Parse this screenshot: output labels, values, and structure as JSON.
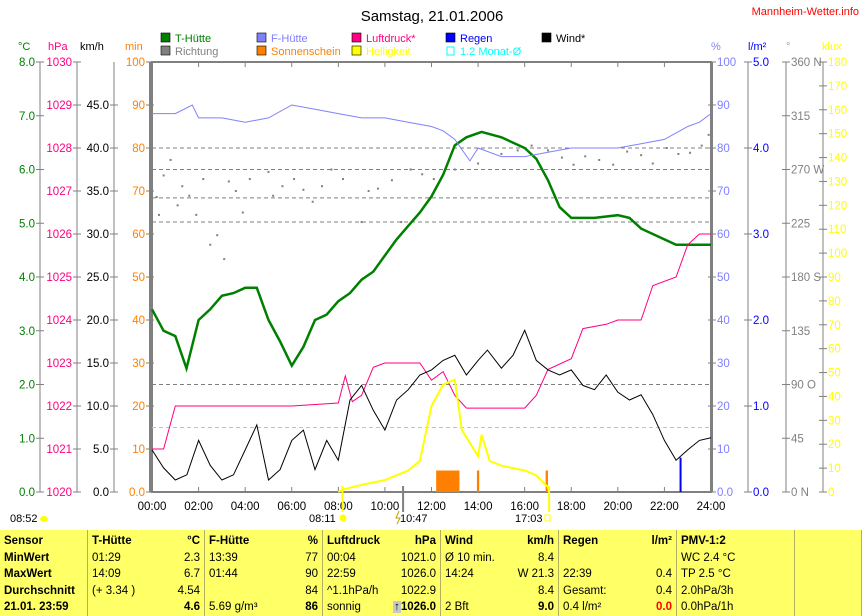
{
  "title": "Samstag, 21.01.2006",
  "site": "Mannheim-Wetter.info",
  "colors": {
    "temp": "#008000",
    "pressure": "#ff0080",
    "humidity": "#8080ff",
    "wind": "#000000",
    "direction": "#808080",
    "sunshine": "#ff8000",
    "brightness": "#ffff00",
    "rain": "#0000ff",
    "monthavg": "#00ffff",
    "table_bg": "#ffff66"
  },
  "legend": [
    {
      "label": "T-Hütte",
      "color": "#008000"
    },
    {
      "label": "F-Hütte",
      "color": "#8080ff"
    },
    {
      "label": "Luftdruck*",
      "color": "#ff0080"
    },
    {
      "label": "Regen",
      "color": "#0000ff"
    },
    {
      "label": "Wind*",
      "color": "#000000"
    },
    {
      "label": "Richtung",
      "color": "#808080"
    },
    {
      "label": "Sonnenschein",
      "color": "#ff8000"
    },
    {
      "label": "Helligkeit",
      "color": "#ffff00"
    },
    {
      "label": "1.2 Monat-Ø",
      "color": "#00ffff"
    }
  ],
  "units": {
    "temp": "°C",
    "pressure": "hPa",
    "wind": "km/h",
    "sun": "min",
    "humidity": "%",
    "rain": "l/m²",
    "dir": "°",
    "klux": "klux"
  },
  "below_axis": {
    "sunrise_info": "08:52",
    "sunrise": "08:11",
    "event": "10:47",
    "sunset": "17:03"
  },
  "chart_data": {
    "type": "line",
    "title": "Samstag, 21.01.2006",
    "x_range_hours": [
      0,
      24
    ],
    "x_ticks": [
      "00:00",
      "02:00",
      "04:00",
      "06:00",
      "08:00",
      "10:00",
      "12:00",
      "14:00",
      "16:00",
      "18:00",
      "20:00",
      "22:00",
      "24:00"
    ],
    "axes": {
      "temp": {
        "range": [
          0,
          8
        ],
        "ticks": [
          "0.0",
          "1.0",
          "2.0",
          "3.0",
          "4.0",
          "5.0",
          "6.0",
          "7.0",
          "8.0"
        ]
      },
      "pressure": {
        "range": [
          1020,
          1030
        ],
        "ticks": [
          "1020",
          "1021",
          "1022",
          "1023",
          "1024",
          "1025",
          "1026",
          "1027",
          "1028",
          "1029",
          "1030"
        ]
      },
      "wind": {
        "range": [
          0,
          50
        ],
        "ticks": [
          "0.0",
          "5.0",
          "10.0",
          "15.0",
          "20.0",
          "25.0",
          "30.0",
          "35.0",
          "40.0",
          "45.0"
        ]
      },
      "sun": {
        "range": [
          0,
          100
        ],
        "ticks": [
          "0.0",
          "10",
          "20",
          "30",
          "40",
          "50",
          "60",
          "70",
          "80",
          "90",
          "100"
        ]
      },
      "humidity": {
        "range": [
          0,
          100
        ],
        "ticks": [
          "0.0",
          "10",
          "20",
          "30",
          "40",
          "50",
          "60",
          "70",
          "80",
          "90",
          "100"
        ]
      },
      "rain": {
        "range": [
          0,
          5
        ],
        "ticks": [
          "0.0",
          "1.0",
          "2.0",
          "3.0",
          "4.0",
          "5.0"
        ]
      },
      "dir": {
        "range": [
          0,
          360
        ],
        "ticks": [
          "0 N",
          "45",
          "90 O",
          "135",
          "180 S",
          "225",
          "270 W",
          "315",
          "360 N"
        ]
      },
      "klux": {
        "range": [
          0,
          180
        ],
        "ticks": [
          "0",
          "10",
          "20",
          "30",
          "40",
          "50",
          "60",
          "70",
          "80",
          "90",
          "100",
          "110",
          "120",
          "130",
          "140",
          "150",
          "160",
          "170",
          "180"
        ]
      }
    },
    "series": [
      {
        "name": "T-Hütte",
        "axis": "temp",
        "color": "#008000",
        "x": [
          0,
          0.5,
          1.0,
          1.48,
          2,
          2.5,
          3,
          3.5,
          4,
          4.5,
          5,
          5.5,
          6,
          6.5,
          7,
          7.5,
          8,
          8.5,
          9,
          9.5,
          10,
          10.5,
          11,
          11.5,
          12,
          12.5,
          13,
          13.5,
          14.15,
          15,
          16,
          16.5,
          17,
          17.5,
          18,
          19,
          20,
          20.5,
          21,
          22,
          22.5,
          23,
          24
        ],
        "y": [
          3.4,
          3.0,
          2.9,
          2.3,
          3.2,
          3.4,
          3.65,
          3.7,
          3.8,
          3.8,
          3.2,
          2.8,
          2.35,
          2.7,
          3.2,
          3.3,
          3.55,
          3.7,
          3.95,
          4.1,
          4.4,
          4.7,
          4.95,
          5.2,
          5.5,
          5.9,
          6.45,
          6.6,
          6.7,
          6.6,
          6.4,
          6.2,
          5.8,
          5.3,
          5.1,
          5.1,
          5.15,
          5.1,
          4.9,
          4.7,
          4.6,
          4.6,
          4.6
        ]
      },
      {
        "name": "F-Hütte",
        "axis": "humidity",
        "color": "#8080ff",
        "x": [
          0,
          1,
          1.73,
          2,
          3,
          4,
          5,
          6,
          7,
          8,
          9,
          10,
          11,
          12,
          12.5,
          13,
          13.65,
          14,
          15,
          16,
          17,
          18,
          19,
          20,
          21,
          22,
          23,
          23.5,
          24
        ],
        "y": [
          88,
          88,
          90,
          87,
          87,
          86,
          87,
          90,
          89,
          88,
          87,
          87,
          86,
          85,
          84,
          82,
          77,
          80,
          78,
          78,
          79,
          80,
          80,
          80,
          81,
          82,
          85,
          86,
          88
        ]
      },
      {
        "name": "Luftdruck*",
        "axis": "pressure",
        "color": "#ff0080",
        "x": [
          0,
          0.5,
          1,
          2,
          4,
          6,
          8,
          8.3,
          8.6,
          9,
          9.5,
          10,
          10.5,
          11.5,
          12,
          12.5,
          13,
          13.5,
          15,
          16,
          16.5,
          17,
          18,
          18.5,
          19.5,
          20,
          21,
          21.5,
          22.5,
          23,
          23.5,
          24
        ],
        "y": [
          1021.0,
          1021.0,
          1022.0,
          1022.0,
          1022.0,
          1022.0,
          1022.07,
          1022.7,
          1022.1,
          1022.25,
          1022.9,
          1023.0,
          1023.0,
          1023.0,
          1022.6,
          1022.8,
          1022.25,
          1021.95,
          1021.95,
          1021.95,
          1022.25,
          1022.85,
          1023.1,
          1023.8,
          1023.9,
          1024.0,
          1024.0,
          1024.8,
          1025.0,
          1025.75,
          1026.0,
          1026.0
        ]
      },
      {
        "name": "Wind*",
        "axis": "wind",
        "color": "#000000",
        "x": [
          0,
          0.5,
          1,
          1.5,
          2,
          2.5,
          3,
          3.5,
          4,
          4.5,
          5,
          5.5,
          6,
          6.5,
          7,
          7.5,
          8,
          8.5,
          9,
          9.5,
          10,
          10.5,
          11,
          11.5,
          12,
          12.5,
          13,
          13.5,
          14,
          14.4,
          15,
          15.5,
          16,
          16.5,
          17,
          17.5,
          18,
          18.5,
          19,
          19.5,
          20,
          20.5,
          21,
          21.5,
          22,
          22.5,
          23,
          23.5,
          24
        ],
        "y": [
          4.9,
          2.8,
          1.4,
          2.0,
          6.0,
          3.1,
          1.4,
          2.0,
          4.9,
          7.8,
          1.4,
          2.6,
          6.0,
          7.2,
          2.6,
          6.0,
          3.7,
          10.7,
          12.4,
          9.5,
          7.2,
          10.7,
          11.9,
          13.6,
          14.2,
          15.3,
          15.9,
          13.6,
          15.3,
          16.5,
          14.4,
          15.9,
          18.8,
          15.3,
          14.2,
          13.6,
          14.2,
          12.4,
          11.9,
          13.6,
          11.6,
          10.7,
          11.3,
          9.0,
          6.0,
          3.7,
          4.9,
          6.0,
          6.3
        ]
      },
      {
        "name": "Helligkeit",
        "axis": "klux",
        "color": "#ffff00",
        "x": [
          8.0,
          8.2,
          9,
          10,
          11,
          11.5,
          12,
          12.5,
          13,
          13.3,
          14,
          14.15,
          14.5,
          15,
          16,
          16.5,
          17,
          17.05
        ],
        "y": [
          0,
          1,
          3,
          5,
          9,
          13,
          36,
          45,
          47,
          26,
          15,
          24,
          13,
          11,
          9,
          7,
          2,
          0
        ]
      }
    ],
    "bars": [
      {
        "name": "Sonnenschein",
        "axis": "sun",
        "color": "#ff8000",
        "x_hours": [
          [
            12.2,
            13.2
          ],
          [
            13.95,
            14.05
          ],
          [
            16.9,
            17.0
          ]
        ],
        "values": [
          5,
          5,
          5
        ]
      },
      {
        "name": "Regen",
        "axis": "rain",
        "color": "#0000ff",
        "x_hours": [
          [
            22.65,
            22.68
          ]
        ],
        "values": [
          0.4
        ]
      }
    ],
    "direction_points": {
      "axis": "dir",
      "color": "#808080",
      "x": [
        0.2,
        0.3,
        0.5,
        0.8,
        1.1,
        1.3,
        1.6,
        1.9,
        2.2,
        2.5,
        2.8,
        3.1,
        3.3,
        3.6,
        3.9,
        4.2,
        5.0,
        5.2,
        5.6,
        6.1,
        6.5,
        6.9,
        7.3,
        7.7,
        8.2,
        9.0,
        9.3,
        9.7,
        10.3,
        10.7,
        11.1,
        11.6,
        12.1,
        13.0,
        14.0,
        15.0,
        15.7,
        16.3,
        17.0,
        17.6,
        18.1,
        18.6,
        19.2,
        19.8,
        20.4,
        21.0,
        21.5,
        22.1,
        22.6,
        23.1,
        23.6,
        23.9
      ],
      "y": [
        247,
        232,
        265,
        278,
        240,
        256,
        248,
        232,
        262,
        207,
        215,
        195,
        260,
        252,
        234,
        262,
        268,
        248,
        256,
        262,
        253,
        243,
        256,
        270,
        262,
        226,
        252,
        254,
        261,
        226,
        270,
        266,
        262,
        270,
        275,
        283,
        286,
        290,
        286,
        280,
        274,
        281,
        278,
        274,
        285,
        282,
        275,
        288,
        283,
        284,
        290,
        299
      ]
    },
    "ref_lines": {
      "axis": "sun",
      "values": [
        80,
        75,
        68.4,
        62.8,
        25,
        15
      ]
    },
    "markers_hours": {
      "sunrise": 8.18,
      "event": 10.78,
      "sunset": 17.05
    }
  },
  "table": {
    "columns": [
      {
        "head": [
          "Sensor",
          ""
        ],
        "rows": [
          [
            "MinWert",
            ""
          ],
          [
            "MaxWert",
            ""
          ],
          [
            "Durchschnitt",
            ""
          ],
          [
            "21.01. 23:59",
            ""
          ]
        ],
        "bold": true
      },
      {
        "head": [
          "T-Hütte",
          "°C"
        ],
        "rows": [
          [
            "01:29",
            "2.3"
          ],
          [
            "14:09",
            "6.7"
          ],
          [
            "(+ 3.34 )",
            "4.54"
          ],
          [
            "",
            "4.6"
          ]
        ]
      },
      {
        "head": [
          "F-Hütte",
          "%"
        ],
        "rows": [
          [
            "13:39",
            "77"
          ],
          [
            "01:44",
            "90"
          ],
          [
            "",
            "84"
          ],
          [
            "5.69 g/m³",
            "86"
          ]
        ]
      },
      {
        "head": [
          "Luftdruck",
          "hPa"
        ],
        "rows": [
          [
            "00:04",
            "1021.0"
          ],
          [
            "22:59",
            "1026.0"
          ],
          [
            "^1.1hPa/h",
            "1022.9"
          ],
          [
            "sonnig",
            "1026.0"
          ]
        ]
      },
      {
        "head": [
          "Wind",
          "km/h"
        ],
        "rows": [
          [
            "Ø 10 min.",
            "8.4"
          ],
          [
            "14:24",
            "W 21.3"
          ],
          [
            "",
            "8.4"
          ],
          [
            "2 Bft",
            "9.0"
          ]
        ]
      },
      {
        "head": [
          "Regen",
          "l/m²"
        ],
        "rows": [
          [
            "",
            ""
          ],
          [
            "22:39",
            "0.4"
          ],
          [
            "Gesamt:",
            "0.4"
          ],
          [
            "0.4 l/m²",
            "0.0"
          ]
        ]
      },
      {
        "head": [
          "PMV-1:2",
          ""
        ],
        "rows": [
          [
            "WC 2.4 °C",
            ""
          ],
          [
            "TP 2.5 °C",
            ""
          ],
          [
            "2.0hPa/3h",
            ""
          ],
          [
            "0.0hPa/1h",
            ""
          ]
        ]
      },
      {
        "head": [
          "",
          ""
        ],
        "rows": [
          [
            "",
            ""
          ],
          [
            "",
            ""
          ],
          [
            "",
            ""
          ],
          [
            "",
            ""
          ]
        ]
      }
    ],
    "trend_arrow": "↑"
  }
}
